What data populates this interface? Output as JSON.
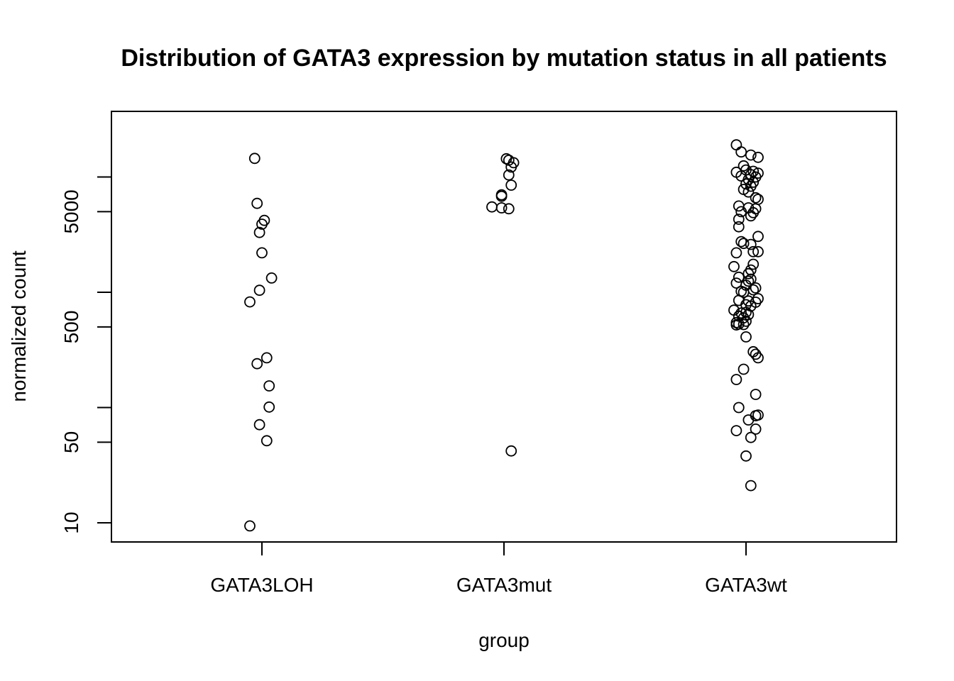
{
  "chart_data": {
    "type": "scatter",
    "title": "Distribution of GATA3 expression by mutation status in all patients",
    "xlabel": "group",
    "ylabel": "normalized count",
    "y_scale": "log",
    "ylim": [
      7,
      23000
    ],
    "y_ticks": [
      10,
      50,
      100,
      500,
      1000,
      5000,
      10000
    ],
    "y_tick_labels": [
      "10",
      "50",
      "",
      "500",
      "",
      "5000",
      ""
    ],
    "categories": [
      "GATA3LOH",
      "GATA3mut",
      "GATA3wt"
    ],
    "grid": false,
    "legend": "none",
    "series": [
      {
        "category": "GATA3LOH",
        "points": [
          {
            "j": -0.03,
            "y": 14500
          },
          {
            "j": -0.02,
            "y": 5900
          },
          {
            "j": 0.01,
            "y": 4200
          },
          {
            "j": 0.0,
            "y": 3900
          },
          {
            "j": -0.01,
            "y": 3300
          },
          {
            "j": 0.0,
            "y": 2200
          },
          {
            "j": 0.04,
            "y": 1330
          },
          {
            "j": -0.01,
            "y": 1040
          },
          {
            "j": -0.05,
            "y": 825
          },
          {
            "j": 0.02,
            "y": 270
          },
          {
            "j": -0.02,
            "y": 240
          },
          {
            "j": 0.03,
            "y": 154
          },
          {
            "j": 0.03,
            "y": 101
          },
          {
            "j": -0.01,
            "y": 71
          },
          {
            "j": 0.02,
            "y": 51.5
          },
          {
            "j": -0.05,
            "y": 9.4
          }
        ]
      },
      {
        "category": "GATA3mut",
        "points": [
          {
            "j": 0.01,
            "y": 14400
          },
          {
            "j": 0.02,
            "y": 14000
          },
          {
            "j": 0.04,
            "y": 13300
          },
          {
            "j": 0.03,
            "y": 12200
          },
          {
            "j": 0.02,
            "y": 10400
          },
          {
            "j": 0.03,
            "y": 8500
          },
          {
            "j": -0.01,
            "y": 7000
          },
          {
            "j": -0.01,
            "y": 6800
          },
          {
            "j": -0.05,
            "y": 5500
          },
          {
            "j": -0.01,
            "y": 5400
          },
          {
            "j": 0.02,
            "y": 5300
          },
          {
            "j": 0.03,
            "y": 42
          }
        ]
      },
      {
        "category": "GATA3wt",
        "points": [
          {
            "j": -0.04,
            "y": 19000
          },
          {
            "j": -0.02,
            "y": 16500
          },
          {
            "j": 0.02,
            "y": 15500
          },
          {
            "j": 0.05,
            "y": 14800
          },
          {
            "j": -0.01,
            "y": 12500
          },
          {
            "j": 0.0,
            "y": 11500
          },
          {
            "j": 0.03,
            "y": 11200
          },
          {
            "j": -0.04,
            "y": 11000
          },
          {
            "j": 0.05,
            "y": 10800
          },
          {
            "j": 0.02,
            "y": 10500
          },
          {
            "j": -0.02,
            "y": 10200
          },
          {
            "j": 0.04,
            "y": 10000
          },
          {
            "j": 0.01,
            "y": 9500
          },
          {
            "j": 0.03,
            "y": 9000
          },
          {
            "j": 0.0,
            "y": 8700
          },
          {
            "j": 0.02,
            "y": 8300
          },
          {
            "j": -0.01,
            "y": 7800
          },
          {
            "j": 0.01,
            "y": 7400
          },
          {
            "j": 0.04,
            "y": 6600
          },
          {
            "j": 0.05,
            "y": 6400
          },
          {
            "j": -0.03,
            "y": 5600
          },
          {
            "j": 0.01,
            "y": 5400
          },
          {
            "j": 0.04,
            "y": 5300
          },
          {
            "j": -0.02,
            "y": 5000
          },
          {
            "j": 0.03,
            "y": 4900
          },
          {
            "j": 0.02,
            "y": 4600
          },
          {
            "j": -0.03,
            "y": 4300
          },
          {
            "j": -0.03,
            "y": 3700
          },
          {
            "j": 0.05,
            "y": 3050
          },
          {
            "j": -0.02,
            "y": 2750
          },
          {
            "j": -0.01,
            "y": 2650
          },
          {
            "j": 0.02,
            "y": 2600
          },
          {
            "j": 0.03,
            "y": 2250
          },
          {
            "j": -0.04,
            "y": 2200
          },
          {
            "j": 0.05,
            "y": 2250
          },
          {
            "j": 0.03,
            "y": 1750
          },
          {
            "j": -0.05,
            "y": 1670
          },
          {
            "j": 0.02,
            "y": 1560
          },
          {
            "j": 0.01,
            "y": 1450
          },
          {
            "j": -0.03,
            "y": 1350
          },
          {
            "j": 0.02,
            "y": 1300
          },
          {
            "j": 0.01,
            "y": 1250
          },
          {
            "j": -0.04,
            "y": 1200
          },
          {
            "j": 0.0,
            "y": 1150
          },
          {
            "j": 0.04,
            "y": 1090
          },
          {
            "j": 0.03,
            "y": 1050
          },
          {
            "j": -0.02,
            "y": 1020
          },
          {
            "j": -0.01,
            "y": 1000
          },
          {
            "j": 0.05,
            "y": 880
          },
          {
            "j": -0.03,
            "y": 850
          },
          {
            "j": 0.01,
            "y": 840
          },
          {
            "j": 0.04,
            "y": 820
          },
          {
            "j": 0.0,
            "y": 780
          },
          {
            "j": 0.02,
            "y": 760
          },
          {
            "j": -0.05,
            "y": 700
          },
          {
            "j": 0.0,
            "y": 670
          },
          {
            "j": -0.02,
            "y": 660
          },
          {
            "j": 0.01,
            "y": 640
          },
          {
            "j": -0.03,
            "y": 620
          },
          {
            "j": -0.01,
            "y": 600
          },
          {
            "j": 0.0,
            "y": 560
          },
          {
            "j": -0.04,
            "y": 545
          },
          {
            "j": -0.03,
            "y": 530
          },
          {
            "j": -0.01,
            "y": 525
          },
          {
            "j": -0.04,
            "y": 520
          },
          {
            "j": 0.0,
            "y": 410
          },
          {
            "j": 0.03,
            "y": 305
          },
          {
            "j": 0.04,
            "y": 290
          },
          {
            "j": 0.05,
            "y": 270
          },
          {
            "j": -0.01,
            "y": 215
          },
          {
            "j": -0.04,
            "y": 175
          },
          {
            "j": 0.04,
            "y": 130
          },
          {
            "j": -0.03,
            "y": 100
          },
          {
            "j": 0.05,
            "y": 86
          },
          {
            "j": 0.04,
            "y": 85
          },
          {
            "j": 0.01,
            "y": 78
          },
          {
            "j": 0.04,
            "y": 65
          },
          {
            "j": -0.04,
            "y": 63
          },
          {
            "j": 0.02,
            "y": 55
          },
          {
            "j": 0.0,
            "y": 38
          },
          {
            "j": 0.02,
            "y": 21
          }
        ]
      }
    ]
  }
}
